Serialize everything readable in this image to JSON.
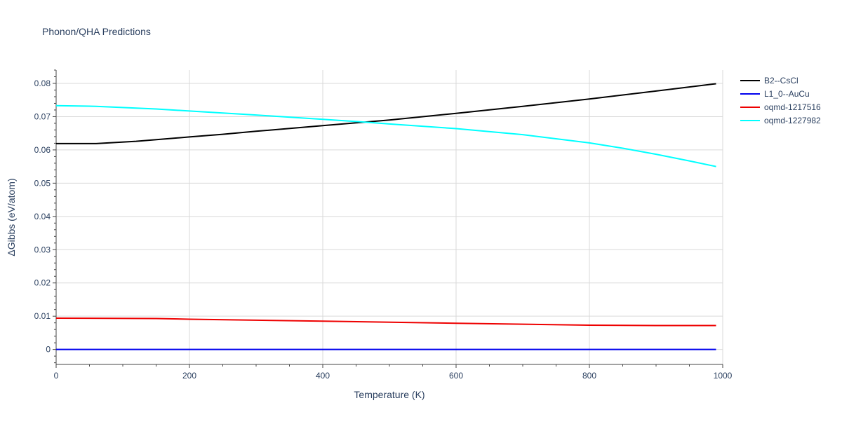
{
  "chart_data": {
    "type": "line",
    "title": "Phonon/QHA Predictions",
    "xlabel": "Temperature (K)",
    "ylabel": "ΔGibbs (eV/atom)",
    "xlim": [
      0,
      1000
    ],
    "ylim": [
      -0.0045,
      0.084
    ],
    "grid": true,
    "legend_position": "top-right",
    "x_ticks": [
      0,
      200,
      400,
      600,
      800,
      1000
    ],
    "x_tick_labels": [
      "0",
      "200",
      "400",
      "600",
      "800",
      "1000"
    ],
    "y_ticks": [
      0,
      0.01,
      0.02,
      0.03,
      0.04,
      0.05,
      0.06,
      0.07,
      0.08
    ],
    "y_tick_labels": [
      "0",
      "0.01",
      "0.02",
      "0.03",
      "0.04",
      "0.05",
      "0.06",
      "0.07",
      "0.08"
    ],
    "series": [
      {
        "name": "B2--CsCl",
        "color": "#000000",
        "x": [
          0,
          60,
          120,
          200,
          250,
          300,
          400,
          460,
          500,
          600,
          700,
          800,
          900,
          990
        ],
        "y": [
          0.0619,
          0.0619,
          0.0626,
          0.0639,
          0.0647,
          0.0656,
          0.0673,
          0.0683,
          0.069,
          0.071,
          0.0731,
          0.0753,
          0.0777,
          0.0799
        ]
      },
      {
        "name": "L1_0--AuCu",
        "color": "#0000ee",
        "x": [
          0,
          200,
          400,
          600,
          800,
          990
        ],
        "y": [
          0,
          0,
          0,
          0,
          0,
          0
        ]
      },
      {
        "name": "oqmd-1217516",
        "color": "#ee0000",
        "x": [
          0,
          150,
          200,
          400,
          600,
          800,
          900,
          990
        ],
        "y": [
          0.0094,
          0.0093,
          0.0091,
          0.0085,
          0.0079,
          0.0073,
          0.0072,
          0.0072
        ]
      },
      {
        "name": "oqmd-1227982",
        "color": "#00ffff",
        "x": [
          0,
          60,
          150,
          200,
          300,
          400,
          460,
          500,
          600,
          700,
          800,
          850,
          900,
          950,
          990
        ],
        "y": [
          0.0733,
          0.0731,
          0.0723,
          0.0717,
          0.0705,
          0.0692,
          0.0684,
          0.0678,
          0.0664,
          0.0646,
          0.0621,
          0.0605,
          0.0587,
          0.0567,
          0.055
        ]
      }
    ]
  }
}
